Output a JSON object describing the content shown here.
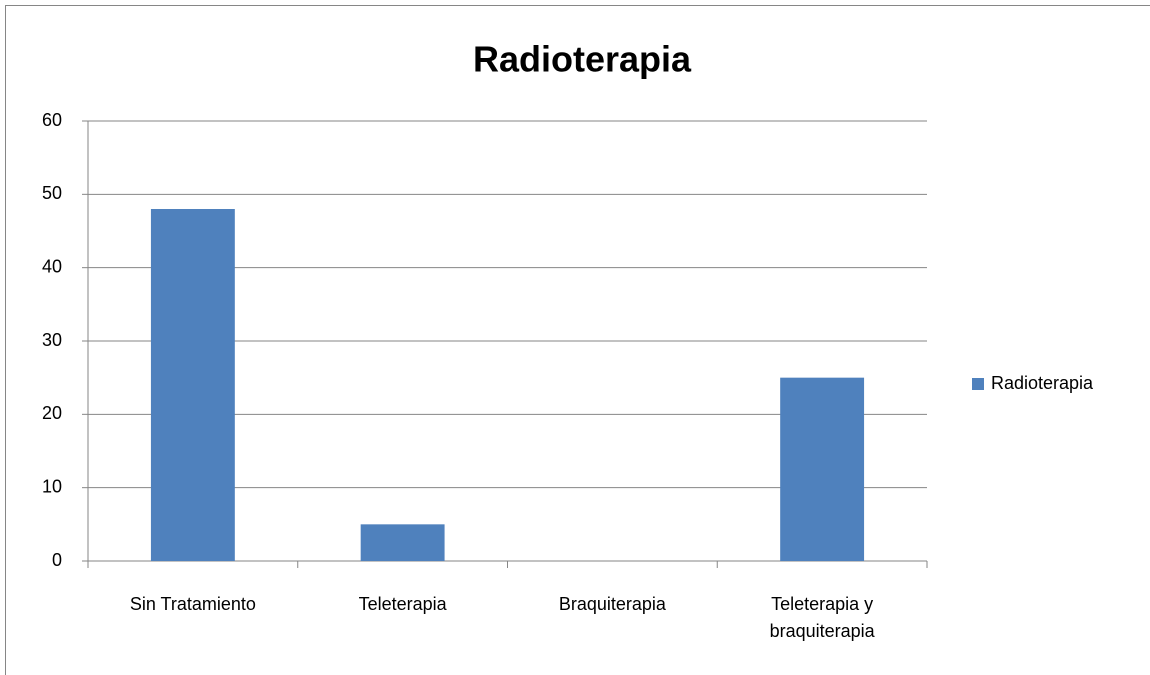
{
  "chart_data": {
    "type": "bar",
    "title": "Radioterapia",
    "categories": [
      "Sin Tratamiento",
      "Teleterapia",
      "Braquiterapia",
      "Teleterapia y braquiterapia"
    ],
    "series": [
      {
        "name": "Radioterapia",
        "color": "#4f81bd",
        "values": [
          48,
          5,
          0,
          25
        ]
      }
    ],
    "ylim": [
      0,
      60
    ],
    "yticks": [
      0,
      10,
      20,
      30,
      40,
      50,
      60
    ],
    "grid": true,
    "legend": "right"
  }
}
